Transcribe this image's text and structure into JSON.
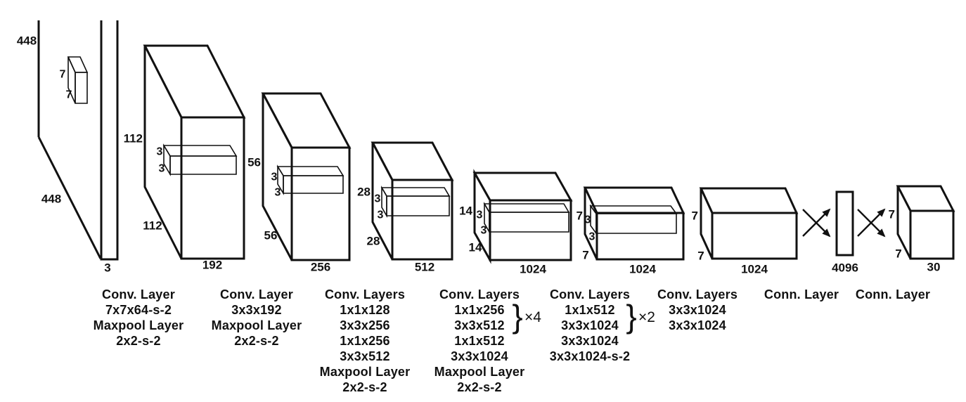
{
  "figure": {
    "type": "cnn-architecture-diagram",
    "colors": {
      "ink": "#111111",
      "background": "#ffffff"
    },
    "input": {
      "side": "448",
      "slant": "448",
      "depth": "3",
      "filter": [
        "7",
        "7"
      ]
    },
    "blocks": [
      {
        "side": "112",
        "slant": "112",
        "depth": "192",
        "filter": [
          "3",
          "3"
        ]
      },
      {
        "side": "56",
        "slant": "56",
        "depth": "256",
        "filter": [
          "3",
          "3"
        ]
      },
      {
        "side": "28",
        "slant": "28",
        "depth": "512",
        "filter": [
          "3",
          "3"
        ]
      },
      {
        "side": "14",
        "slant": "14",
        "depth": "1024",
        "filter": [
          "3",
          "3"
        ]
      },
      {
        "side": "7",
        "slant": "7",
        "depth": "1024",
        "filter": [
          "3",
          "3"
        ]
      },
      {
        "side": "7",
        "slant": "7",
        "depth": "1024",
        "filter": []
      }
    ],
    "fc_vector": {
      "label": "4096"
    },
    "output": {
      "side": "7",
      "slant": "7",
      "depth": "30"
    },
    "columns": [
      {
        "lines": [
          "Conv. Layer",
          "7x7x64-s-2",
          "Maxpool Layer",
          "2x2-s-2"
        ]
      },
      {
        "lines": [
          "Conv. Layer",
          "3x3x192",
          "Maxpool Layer",
          "2x2-s-2"
        ]
      },
      {
        "lines": [
          "Conv. Layers",
          "1x1x128",
          "3x3x256",
          "1x1x256",
          "3x3x512",
          "Maxpool Layer",
          "2x2-s-2"
        ]
      },
      {
        "lines": [
          "Conv. Layers",
          "1x1x256",
          "3x3x512",
          "1x1x512",
          "3x3x1024",
          "Maxpool Layer",
          "2x2-s-2"
        ],
        "brace": {
          "char": "}",
          "label": "×4"
        }
      },
      {
        "lines": [
          "Conv. Layers",
          "1x1x512",
          "3x3x1024",
          "3x3x1024",
          "3x3x1024-s-2"
        ],
        "brace": {
          "char": "}",
          "label": "×2"
        }
      },
      {
        "lines": [
          "Conv. Layers",
          "3x3x1024",
          "3x3x1024"
        ]
      },
      {
        "lines": [
          "Conn. Layer"
        ]
      },
      {
        "lines": [
          "Conn. Layer"
        ]
      }
    ]
  }
}
